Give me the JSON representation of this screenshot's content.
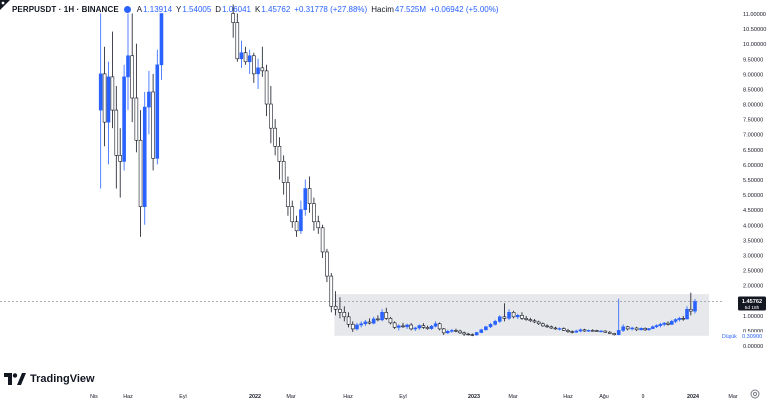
{
  "header": {
    "symbol": "PERPUSDT · 1H · BINANCE",
    "open_label": "A",
    "open": "1.13914",
    "high_label": "Y",
    "high": "1.54005",
    "low_label": "D",
    "low": "1.06041",
    "close_label": "K",
    "close": "1.45762",
    "change": "+0.31778 (+27.88%)",
    "volume_label": "Hacim",
    "volume": "47.525M",
    "volume_change": "+0.06942 (+5.00%)"
  },
  "price_tag": {
    "value": "1.45762",
    "countdown": "5d 18h"
  },
  "low_marker": {
    "label": "Düşük",
    "value": "0.30900"
  },
  "logo": {
    "text": "TradingView"
  },
  "icons": {
    "settings": "gear-icon",
    "logo": "tradingview-logo-icon",
    "avatar": "user-avatar-icon"
  },
  "colors": {
    "up": "#2962ff",
    "down": "#131722",
    "accent": "#2962ff",
    "box": "#d9dbe0"
  },
  "chart_data": {
    "type": "candlestick",
    "y_ticks": [
      "11.00000",
      "10.50000",
      "10.00000",
      "9.50000",
      "9.00000",
      "8.50000",
      "8.00000",
      "7.50000",
      "7.00000",
      "6.50000",
      "6.00000",
      "5.50000",
      "5.00000",
      "4.50000",
      "4.00000",
      "3.50000",
      "3.00000",
      "2.50000",
      "2.00000",
      "1.50000",
      "1.00000",
      "0.50000",
      "0.00000"
    ],
    "x_ticks": [
      "Nis",
      "Haz",
      "Eyl",
      "2022",
      "Mar",
      "Haz",
      "Eyl",
      "2023",
      "Mar",
      "Haz",
      "Ağu",
      "9",
      "2024",
      "Mar"
    ],
    "x_tick_dates": [
      "2021-04-01",
      "2021-06-01",
      "2021-09-01",
      "2022-01-01",
      "2022-03-01",
      "2022-06-01",
      "2022-09-01",
      "2023-01-01",
      "2023-03-01",
      "2023-06-01",
      "2023-08-01",
      "2023-10-01",
      "2024-01-01",
      "2024-03-01"
    ],
    "ylim": [
      -0.4,
      11.25
    ],
    "range_box": {
      "y_top": 1.7,
      "y_bottom": 0.32,
      "x_start": "2022-05-10",
      "x_end": "2024-01-25"
    },
    "current_price": 1.45762,
    "candles": [
      {
        "date": "2021-04-13",
        "o": 7.8,
        "h": 11.0,
        "l": 5.2,
        "c": 9.0
      },
      {
        "date": "2021-04-20",
        "o": 9.0,
        "h": 9.9,
        "l": 6.6,
        "c": 7.4
      },
      {
        "date": "2021-04-27",
        "o": 7.4,
        "h": 9.4,
        "l": 6.0,
        "c": 8.9
      },
      {
        "date": "2021-05-04",
        "o": 8.9,
        "h": 10.4,
        "l": 7.2,
        "c": 7.8
      },
      {
        "date": "2021-05-11",
        "o": 7.8,
        "h": 8.6,
        "l": 5.2,
        "c": 6.3
      },
      {
        "date": "2021-05-18",
        "o": 6.3,
        "h": 7.2,
        "l": 4.9,
        "c": 6.1
      },
      {
        "date": "2021-05-25",
        "o": 6.1,
        "h": 9.3,
        "l": 5.8,
        "c": 8.9
      },
      {
        "date": "2021-06-01",
        "o": 8.9,
        "h": 11.0,
        "l": 7.8,
        "c": 9.6
      },
      {
        "date": "2021-06-08",
        "o": 9.6,
        "h": 11.0,
        "l": 7.4,
        "c": 8.2
      },
      {
        "date": "2021-06-15",
        "o": 8.2,
        "h": 10.0,
        "l": 6.4,
        "c": 6.8
      },
      {
        "date": "2021-06-22",
        "o": 6.8,
        "h": 7.8,
        "l": 3.6,
        "c": 4.6
      },
      {
        "date": "2021-06-29",
        "o": 4.6,
        "h": 8.4,
        "l": 4.0,
        "c": 7.9
      },
      {
        "date": "2021-07-06",
        "o": 7.9,
        "h": 9.1,
        "l": 7.0,
        "c": 8.4
      },
      {
        "date": "2021-07-13",
        "o": 8.4,
        "h": 9.0,
        "l": 5.8,
        "c": 6.2
      },
      {
        "date": "2021-07-20",
        "o": 6.2,
        "h": 9.8,
        "l": 6.0,
        "c": 9.3
      },
      {
        "date": "2021-07-27",
        "o": 9.3,
        "h": 11.0,
        "l": 8.8,
        "c": 11.0
      },
      {
        "date": "2021-11-25",
        "o": 11.0,
        "h": 11.3,
        "l": 10.2,
        "c": 10.7
      },
      {
        "date": "2021-12-02",
        "o": 10.7,
        "h": 11.0,
        "l": 9.4,
        "c": 9.5
      },
      {
        "date": "2021-12-09",
        "o": 9.5,
        "h": 10.1,
        "l": 9.2,
        "c": 9.7
      },
      {
        "date": "2021-12-16",
        "o": 9.7,
        "h": 9.9,
        "l": 9.3,
        "c": 9.4
      },
      {
        "date": "2021-12-23",
        "o": 9.4,
        "h": 9.8,
        "l": 9.0,
        "c": 9.6
      },
      {
        "date": "2021-12-30",
        "o": 9.6,
        "h": 9.7,
        "l": 8.7,
        "c": 9.0
      },
      {
        "date": "2022-01-06",
        "o": 9.0,
        "h": 9.5,
        "l": 8.5,
        "c": 9.2
      },
      {
        "date": "2022-01-13",
        "o": 9.2,
        "h": 9.9,
        "l": 8.9,
        "c": 9.1
      },
      {
        "date": "2022-01-20",
        "o": 9.1,
        "h": 9.3,
        "l": 7.6,
        "c": 8.0
      },
      {
        "date": "2022-01-27",
        "o": 8.0,
        "h": 8.6,
        "l": 6.7,
        "c": 7.2
      },
      {
        "date": "2022-02-03",
        "o": 7.2,
        "h": 7.5,
        "l": 6.3,
        "c": 6.6
      },
      {
        "date": "2022-02-10",
        "o": 6.6,
        "h": 6.9,
        "l": 5.5,
        "c": 6.1
      },
      {
        "date": "2022-02-17",
        "o": 6.1,
        "h": 6.3,
        "l": 5.0,
        "c": 5.4
      },
      {
        "date": "2022-02-24",
        "o": 5.4,
        "h": 5.6,
        "l": 4.3,
        "c": 4.6
      },
      {
        "date": "2022-03-03",
        "o": 4.6,
        "h": 4.8,
        "l": 3.9,
        "c": 4.1
      },
      {
        "date": "2022-03-10",
        "o": 4.1,
        "h": 4.3,
        "l": 3.6,
        "c": 3.8
      },
      {
        "date": "2022-03-17",
        "o": 3.8,
        "h": 4.8,
        "l": 3.7,
        "c": 4.5
      },
      {
        "date": "2022-03-24",
        "o": 4.5,
        "h": 5.5,
        "l": 4.3,
        "c": 5.2
      },
      {
        "date": "2022-03-31",
        "o": 5.2,
        "h": 5.6,
        "l": 4.4,
        "c": 4.7
      },
      {
        "date": "2022-04-07",
        "o": 4.7,
        "h": 4.9,
        "l": 3.8,
        "c": 4.1
      },
      {
        "date": "2022-04-14",
        "o": 4.1,
        "h": 4.3,
        "l": 3.7,
        "c": 3.9
      },
      {
        "date": "2022-04-21",
        "o": 3.9,
        "h": 4.0,
        "l": 2.9,
        "c": 3.1
      },
      {
        "date": "2022-04-28",
        "o": 3.1,
        "h": 3.2,
        "l": 2.1,
        "c": 2.3
      },
      {
        "date": "2022-05-05",
        "o": 2.3,
        "h": 2.4,
        "l": 1.1,
        "c": 1.3
      },
      {
        "date": "2022-05-12",
        "o": 1.3,
        "h": 1.8,
        "l": 1.0,
        "c": 1.2
      },
      {
        "date": "2022-05-19",
        "o": 1.2,
        "h": 1.6,
        "l": 0.9,
        "c": 1.1
      },
      {
        "date": "2022-05-26",
        "o": 1.1,
        "h": 1.3,
        "l": 0.8,
        "c": 0.95
      },
      {
        "date": "2022-06-02",
        "o": 0.95,
        "h": 1.1,
        "l": 0.6,
        "c": 0.7
      },
      {
        "date": "2022-06-09",
        "o": 0.7,
        "h": 0.8,
        "l": 0.45,
        "c": 0.55
      },
      {
        "date": "2022-06-16",
        "o": 0.55,
        "h": 0.75,
        "l": 0.5,
        "c": 0.68
      },
      {
        "date": "2022-06-23",
        "o": 0.68,
        "h": 0.8,
        "l": 0.6,
        "c": 0.72
      },
      {
        "date": "2022-06-30",
        "o": 0.72,
        "h": 0.85,
        "l": 0.65,
        "c": 0.78
      },
      {
        "date": "2022-07-07",
        "o": 0.78,
        "h": 0.9,
        "l": 0.7,
        "c": 0.74
      },
      {
        "date": "2022-07-14",
        "o": 0.74,
        "h": 0.95,
        "l": 0.7,
        "c": 0.88
      },
      {
        "date": "2022-07-21",
        "o": 0.88,
        "h": 1.0,
        "l": 0.8,
        "c": 0.85
      },
      {
        "date": "2022-07-28",
        "o": 0.85,
        "h": 1.2,
        "l": 0.8,
        "c": 1.1
      },
      {
        "date": "2022-08-04",
        "o": 1.1,
        "h": 1.25,
        "l": 0.85,
        "c": 0.9
      },
      {
        "date": "2022-08-11",
        "o": 0.9,
        "h": 0.95,
        "l": 0.7,
        "c": 0.75
      },
      {
        "date": "2022-08-18",
        "o": 0.75,
        "h": 0.8,
        "l": 0.55,
        "c": 0.6
      },
      {
        "date": "2022-08-25",
        "o": 0.6,
        "h": 0.7,
        "l": 0.5,
        "c": 0.65
      },
      {
        "date": "2022-09-01",
        "o": 0.65,
        "h": 0.75,
        "l": 0.58,
        "c": 0.62
      },
      {
        "date": "2022-09-08",
        "o": 0.62,
        "h": 0.72,
        "l": 0.55,
        "c": 0.68
      },
      {
        "date": "2022-09-15",
        "o": 0.68,
        "h": 0.74,
        "l": 0.5,
        "c": 0.55
      },
      {
        "date": "2022-09-22",
        "o": 0.55,
        "h": 0.62,
        "l": 0.48,
        "c": 0.58
      },
      {
        "date": "2022-09-29",
        "o": 0.58,
        "h": 0.7,
        "l": 0.52,
        "c": 0.66
      },
      {
        "date": "2022-10-06",
        "o": 0.66,
        "h": 0.74,
        "l": 0.55,
        "c": 0.6
      },
      {
        "date": "2022-10-13",
        "o": 0.6,
        "h": 0.66,
        "l": 0.52,
        "c": 0.56
      },
      {
        "date": "2022-10-20",
        "o": 0.56,
        "h": 0.68,
        "l": 0.52,
        "c": 0.64
      },
      {
        "date": "2022-10-27",
        "o": 0.64,
        "h": 0.8,
        "l": 0.6,
        "c": 0.72
      },
      {
        "date": "2022-11-03",
        "o": 0.72,
        "h": 0.76,
        "l": 0.5,
        "c": 0.55
      },
      {
        "date": "2022-11-10",
        "o": 0.55,
        "h": 0.58,
        "l": 0.35,
        "c": 0.42
      },
      {
        "date": "2022-11-17",
        "o": 0.42,
        "h": 0.52,
        "l": 0.38,
        "c": 0.47
      },
      {
        "date": "2022-11-24",
        "o": 0.47,
        "h": 0.55,
        "l": 0.42,
        "c": 0.5
      },
      {
        "date": "2022-12-01",
        "o": 0.5,
        "h": 0.56,
        "l": 0.44,
        "c": 0.48
      },
      {
        "date": "2022-12-08",
        "o": 0.48,
        "h": 0.52,
        "l": 0.38,
        "c": 0.42
      },
      {
        "date": "2022-12-15",
        "o": 0.42,
        "h": 0.46,
        "l": 0.32,
        "c": 0.38
      },
      {
        "date": "2022-12-22",
        "o": 0.38,
        "h": 0.42,
        "l": 0.33,
        "c": 0.36
      },
      {
        "date": "2022-12-29",
        "o": 0.36,
        "h": 0.4,
        "l": 0.31,
        "c": 0.35
      },
      {
        "date": "2023-01-05",
        "o": 0.35,
        "h": 0.45,
        "l": 0.33,
        "c": 0.43
      },
      {
        "date": "2023-01-12",
        "o": 0.43,
        "h": 0.55,
        "l": 0.41,
        "c": 0.52
      },
      {
        "date": "2023-01-19",
        "o": 0.52,
        "h": 0.65,
        "l": 0.5,
        "c": 0.62
      },
      {
        "date": "2023-01-26",
        "o": 0.62,
        "h": 0.75,
        "l": 0.58,
        "c": 0.7
      },
      {
        "date": "2023-02-02",
        "o": 0.7,
        "h": 0.85,
        "l": 0.66,
        "c": 0.8
      },
      {
        "date": "2023-02-09",
        "o": 0.8,
        "h": 1.0,
        "l": 0.75,
        "c": 0.95
      },
      {
        "date": "2023-02-16",
        "o": 0.95,
        "h": 1.4,
        "l": 0.8,
        "c": 0.9
      },
      {
        "date": "2023-02-23",
        "o": 0.9,
        "h": 1.2,
        "l": 0.85,
        "c": 1.1
      },
      {
        "date": "2023-03-02",
        "o": 1.1,
        "h": 1.15,
        "l": 0.9,
        "c": 0.95
      },
      {
        "date": "2023-03-09",
        "o": 0.95,
        "h": 1.05,
        "l": 0.88,
        "c": 1.0
      },
      {
        "date": "2023-03-16",
        "o": 1.0,
        "h": 1.1,
        "l": 0.85,
        "c": 0.9
      },
      {
        "date": "2023-03-23",
        "o": 0.9,
        "h": 0.98,
        "l": 0.82,
        "c": 0.86
      },
      {
        "date": "2023-03-30",
        "o": 0.86,
        "h": 0.92,
        "l": 0.78,
        "c": 0.82
      },
      {
        "date": "2023-04-06",
        "o": 0.82,
        "h": 0.88,
        "l": 0.74,
        "c": 0.78
      },
      {
        "date": "2023-04-13",
        "o": 0.78,
        "h": 0.82,
        "l": 0.68,
        "c": 0.72
      },
      {
        "date": "2023-04-20",
        "o": 0.72,
        "h": 0.76,
        "l": 0.62,
        "c": 0.65
      },
      {
        "date": "2023-04-27",
        "o": 0.65,
        "h": 0.7,
        "l": 0.58,
        "c": 0.62
      },
      {
        "date": "2023-05-04",
        "o": 0.62,
        "h": 0.66,
        "l": 0.55,
        "c": 0.58
      },
      {
        "date": "2023-05-11",
        "o": 0.58,
        "h": 0.62,
        "l": 0.52,
        "c": 0.55
      },
      {
        "date": "2023-05-18",
        "o": 0.55,
        "h": 0.6,
        "l": 0.5,
        "c": 0.56
      },
      {
        "date": "2023-05-25",
        "o": 0.56,
        "h": 0.6,
        "l": 0.48,
        "c": 0.5
      },
      {
        "date": "2023-06-01",
        "o": 0.5,
        "h": 0.55,
        "l": 0.42,
        "c": 0.46
      },
      {
        "date": "2023-06-08",
        "o": 0.46,
        "h": 0.5,
        "l": 0.4,
        "c": 0.44
      },
      {
        "date": "2023-06-15",
        "o": 0.44,
        "h": 0.52,
        "l": 0.42,
        "c": 0.48
      },
      {
        "date": "2023-06-22",
        "o": 0.48,
        "h": 0.56,
        "l": 0.44,
        "c": 0.52
      },
      {
        "date": "2023-06-29",
        "o": 0.52,
        "h": 0.55,
        "l": 0.45,
        "c": 0.48
      },
      {
        "date": "2023-07-06",
        "o": 0.48,
        "h": 0.53,
        "l": 0.45,
        "c": 0.5
      },
      {
        "date": "2023-07-13",
        "o": 0.5,
        "h": 0.54,
        "l": 0.46,
        "c": 0.49
      },
      {
        "date": "2023-07-20",
        "o": 0.49,
        "h": 0.52,
        "l": 0.45,
        "c": 0.47
      },
      {
        "date": "2023-07-27",
        "o": 0.47,
        "h": 0.51,
        "l": 0.44,
        "c": 0.48
      },
      {
        "date": "2023-08-03",
        "o": 0.48,
        "h": 0.5,
        "l": 0.42,
        "c": 0.44
      },
      {
        "date": "2023-08-10",
        "o": 0.44,
        "h": 0.48,
        "l": 0.38,
        "c": 0.4
      },
      {
        "date": "2023-08-17",
        "o": 0.4,
        "h": 0.42,
        "l": 0.33,
        "c": 0.36
      },
      {
        "date": "2023-08-24",
        "o": 0.36,
        "h": 1.55,
        "l": 0.34,
        "c": 0.5
      },
      {
        "date": "2023-08-31",
        "o": 0.5,
        "h": 0.7,
        "l": 0.45,
        "c": 0.62
      },
      {
        "date": "2023-09-07",
        "o": 0.62,
        "h": 0.65,
        "l": 0.5,
        "c": 0.55
      },
      {
        "date": "2023-09-14",
        "o": 0.55,
        "h": 0.62,
        "l": 0.5,
        "c": 0.58
      },
      {
        "date": "2023-09-21",
        "o": 0.58,
        "h": 0.62,
        "l": 0.48,
        "c": 0.52
      },
      {
        "date": "2023-09-28",
        "o": 0.52,
        "h": 0.6,
        "l": 0.5,
        "c": 0.57
      },
      {
        "date": "2023-10-05",
        "o": 0.57,
        "h": 0.6,
        "l": 0.48,
        "c": 0.52
      },
      {
        "date": "2023-10-12",
        "o": 0.52,
        "h": 0.58,
        "l": 0.49,
        "c": 0.56
      },
      {
        "date": "2023-10-19",
        "o": 0.56,
        "h": 0.66,
        "l": 0.54,
        "c": 0.62
      },
      {
        "date": "2023-10-26",
        "o": 0.62,
        "h": 0.7,
        "l": 0.58,
        "c": 0.66
      },
      {
        "date": "2023-11-02",
        "o": 0.66,
        "h": 0.75,
        "l": 0.6,
        "c": 0.7
      },
      {
        "date": "2023-11-09",
        "o": 0.7,
        "h": 0.78,
        "l": 0.64,
        "c": 0.74
      },
      {
        "date": "2023-11-16",
        "o": 0.74,
        "h": 0.8,
        "l": 0.66,
        "c": 0.7
      },
      {
        "date": "2023-11-23",
        "o": 0.7,
        "h": 0.85,
        "l": 0.68,
        "c": 0.8
      },
      {
        "date": "2023-11-30",
        "o": 0.8,
        "h": 0.9,
        "l": 0.74,
        "c": 0.86
      },
      {
        "date": "2023-12-07",
        "o": 0.86,
        "h": 0.95,
        "l": 0.8,
        "c": 0.9
      },
      {
        "date": "2023-12-14",
        "o": 0.9,
        "h": 0.98,
        "l": 0.82,
        "c": 0.88
      },
      {
        "date": "2023-12-21",
        "o": 0.88,
        "h": 1.3,
        "l": 0.86,
        "c": 1.2
      },
      {
        "date": "2023-12-28",
        "o": 1.2,
        "h": 1.75,
        "l": 1.0,
        "c": 1.14
      },
      {
        "date": "2024-01-04",
        "o": 1.13914,
        "h": 1.54005,
        "l": 1.06041,
        "c": 1.45762
      }
    ]
  }
}
